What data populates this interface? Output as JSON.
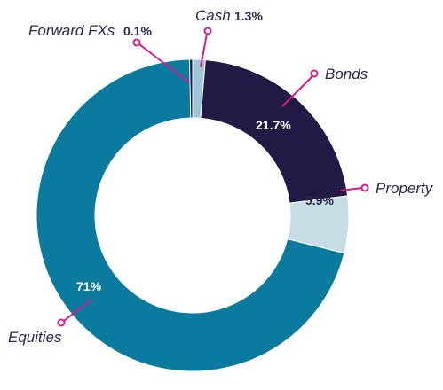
{
  "chart_data": {
    "type": "pie",
    "donut": true,
    "slices": [
      {
        "name": "Cash",
        "value": 1.3,
        "label": "1.3%",
        "color": "#9ec5d7"
      },
      {
        "name": "Bonds",
        "value": 21.7,
        "label": "21.7%",
        "color": "#201a44"
      },
      {
        "name": "Property",
        "value": 5.9,
        "label": "5.9%",
        "color": "#c7dde5"
      },
      {
        "name": "Equities",
        "value": 71.0,
        "label": "71%",
        "color": "#0a7b9f"
      },
      {
        "name": "Forward FXs",
        "value": 0.1,
        "label": "0.1%",
        "color": "#201a44"
      }
    ],
    "leader_color": "#d81b8c"
  }
}
